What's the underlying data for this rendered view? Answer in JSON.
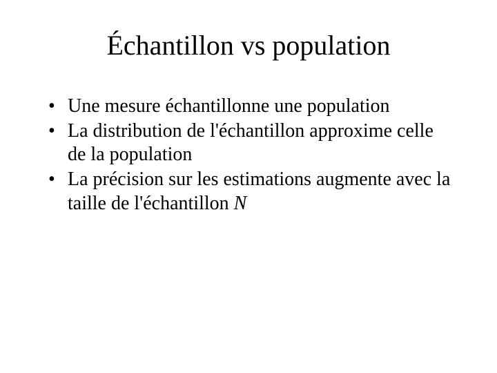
{
  "slide": {
    "title": "Échantillon vs population",
    "bullets": [
      {
        "text": "Une mesure échantillonne une population"
      },
      {
        "text": "La distribution de l'échantillon approxime celle de la population"
      },
      {
        "text_prefix": "La précision sur les estimations augmente avec la taille de l'échantillon ",
        "italic_suffix": "N"
      }
    ],
    "title_fontsize": 40,
    "body_fontsize": 28,
    "font_family": "Times New Roman",
    "text_color": "#000000",
    "background_color": "#ffffff"
  }
}
